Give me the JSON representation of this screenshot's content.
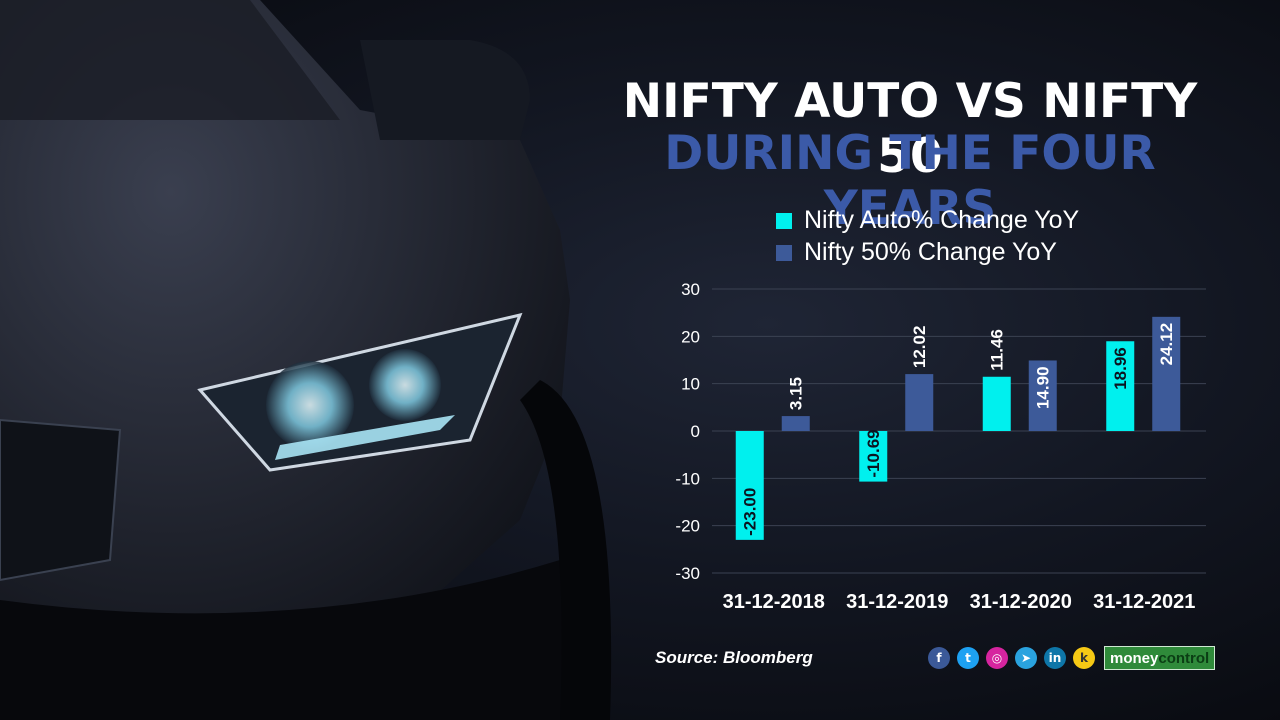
{
  "title_line1": "NIFTY AUTO VS NIFTY 50",
  "title_line2": "DURING THE FOUR YEARS",
  "source": "Source: Bloomberg",
  "brand": {
    "part1": "money",
    "part2": "control"
  },
  "social_icons": [
    "facebook-icon",
    "twitter-icon",
    "instagram-icon",
    "telegram-icon",
    "linkedin-icon",
    "koo-icon"
  ],
  "colors": {
    "auto": "#00f0ee",
    "nifty50": "#3d5a99",
    "title_accent": "#3b5aa8"
  },
  "chart_data": {
    "type": "bar",
    "categories": [
      "31-12-2018",
      "31-12-2019",
      "31-12-2020",
      "31-12-2021"
    ],
    "series": [
      {
        "name": "Nifty Auto% Change YoY",
        "values": [
          -23.0,
          -10.69,
          11.46,
          18.96
        ],
        "labels": [
          "-23.00",
          "-10.69",
          "11.46",
          "18.96"
        ]
      },
      {
        "name": "Nifty 50% Change YoY",
        "values": [
          3.15,
          12.02,
          14.9,
          24.12
        ],
        "labels": [
          "3.15",
          "12.02",
          "14.90",
          "24.12"
        ]
      }
    ],
    "y_ticks": [
      "30",
      "20",
      "10",
      "0",
      "-10",
      "-20",
      "-30"
    ],
    "ylim": [
      -30,
      30
    ],
    "grid": true,
    "legend_position": "top"
  }
}
